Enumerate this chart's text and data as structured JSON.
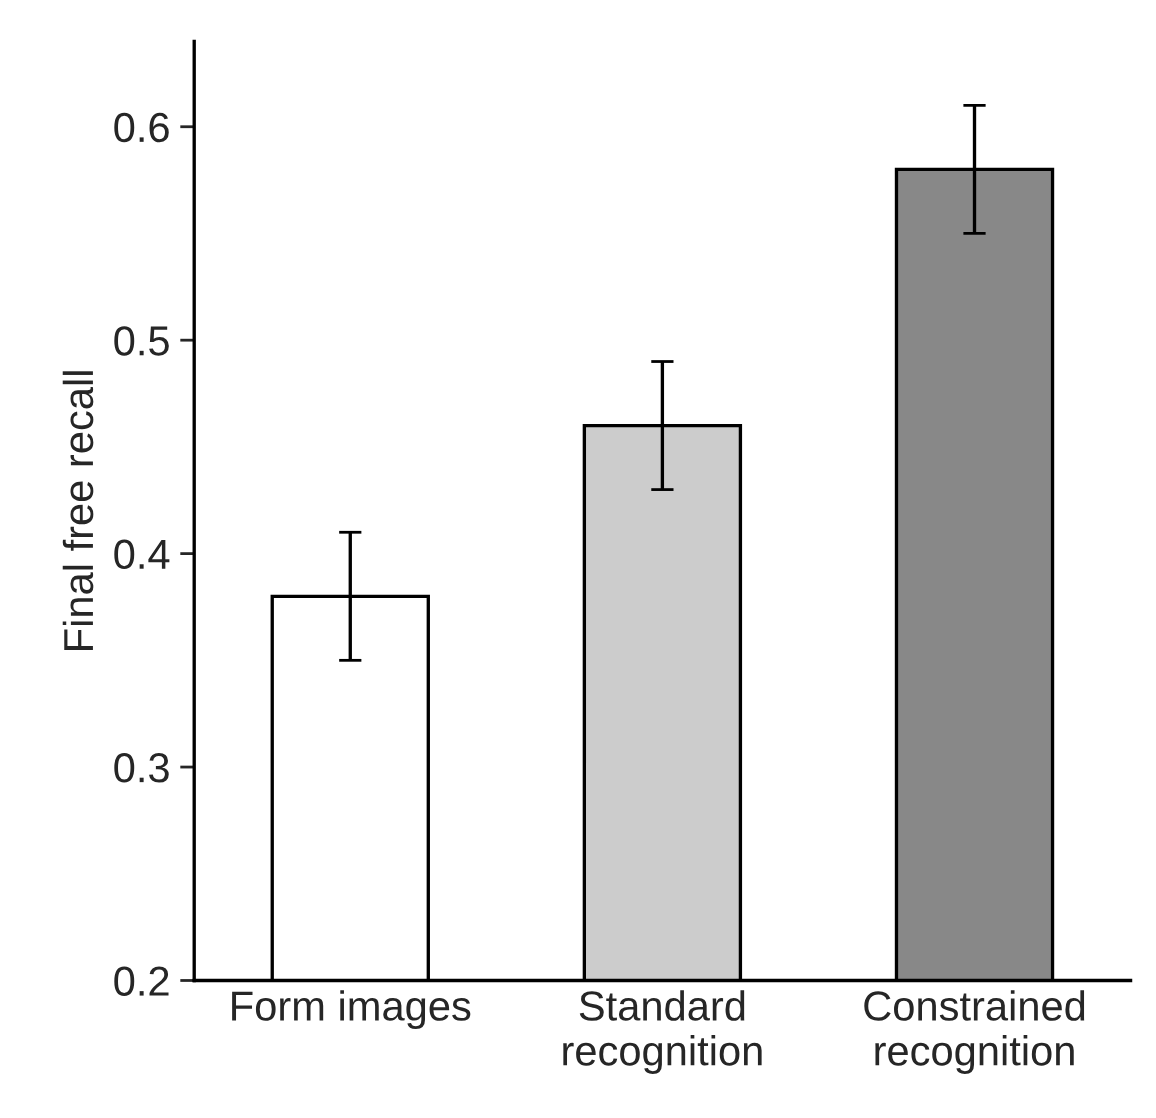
{
  "chart_data": {
    "type": "bar",
    "ylabel": "Final free recall",
    "categories": [
      "Form images",
      "Standard\nrecognition",
      "Constrained\nrecognition"
    ],
    "values": [
      0.38,
      0.46,
      0.58
    ],
    "errors": [
      0.03,
      0.03,
      0.03
    ],
    "colors": [
      "#ffffff",
      "#cccccc",
      "#888888"
    ],
    "ylim": [
      0.2,
      0.64
    ],
    "yticks": [
      0.2,
      0.3,
      0.4,
      0.5,
      0.6
    ],
    "grid": false,
    "legend": false
  }
}
